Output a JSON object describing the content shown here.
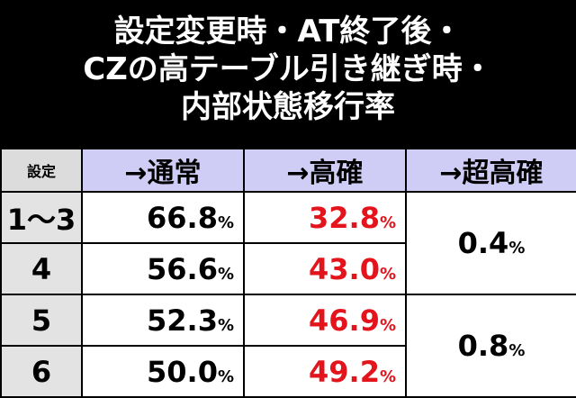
{
  "header": {
    "title_lines": [
      "設定変更時・AT終了後・",
      "CZの高テーブル引き継ぎ時・",
      "内部状態移行率"
    ]
  },
  "table": {
    "columns": [
      "設定",
      "→通常",
      "→高確",
      "→超高確"
    ],
    "rows": [
      {
        "setting": "1～3",
        "normal": {
          "number": "66.8",
          "unit": "%"
        },
        "high": {
          "number": "32.8",
          "unit": "%"
        }
      },
      {
        "setting": "4",
        "normal": {
          "number": "56.6",
          "unit": "%"
        },
        "high": {
          "number": "43.0",
          "unit": "%"
        }
      },
      {
        "setting": "5",
        "normal": {
          "number": "52.3",
          "unit": "%"
        },
        "high": {
          "number": "46.9",
          "unit": "%"
        }
      },
      {
        "setting": "6",
        "normal": {
          "number": "50.0",
          "unit": "%"
        },
        "high": {
          "number": "49.2",
          "unit": "%"
        }
      }
    ],
    "super_high": [
      {
        "number": "0.4",
        "unit": "%"
      },
      {
        "number": "0.8",
        "unit": "%"
      }
    ]
  }
}
